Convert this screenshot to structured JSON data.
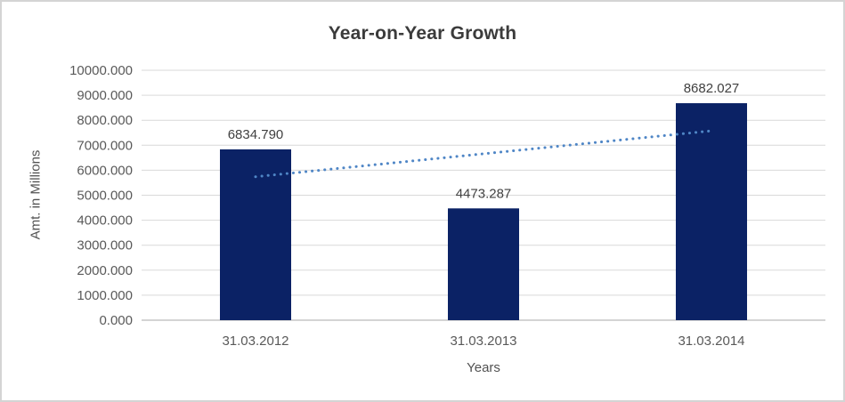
{
  "window": {
    "background_color": "#ffffff",
    "border_color": "#d4d4d4"
  },
  "chart_data": {
    "type": "bar",
    "title": "Year-on-Year Growth",
    "xlabel": "Years",
    "ylabel": "Amt. in Millions",
    "categories": [
      "31.03.2012",
      "31.03.2013",
      "31.03.2014"
    ],
    "values": [
      6834.79,
      4473.287,
      8682.027
    ],
    "data_labels": [
      "6834.790",
      "4473.287",
      "8682.027"
    ],
    "ylim": [
      0,
      10000
    ],
    "y_tick_step": 1000,
    "y_tick_labels": [
      "0.000",
      "1000.000",
      "2000.000",
      "3000.000",
      "4000.000",
      "5000.000",
      "6000.000",
      "7000.000",
      "8000.000",
      "9000.000",
      "10000.000"
    ],
    "grid": true,
    "legend": "none",
    "bar_color": "#0b2265",
    "gridline_color": "#d9d9d9",
    "axis_line_color": "#c6c6c6",
    "label_color": "#595959",
    "data_label_color": "#404040",
    "title_color": "#3b3b3b",
    "trendline": {
      "type": "linear",
      "style": "dotted",
      "color": "#4f86c6",
      "start_value": 5740,
      "end_value": 7587
    }
  }
}
